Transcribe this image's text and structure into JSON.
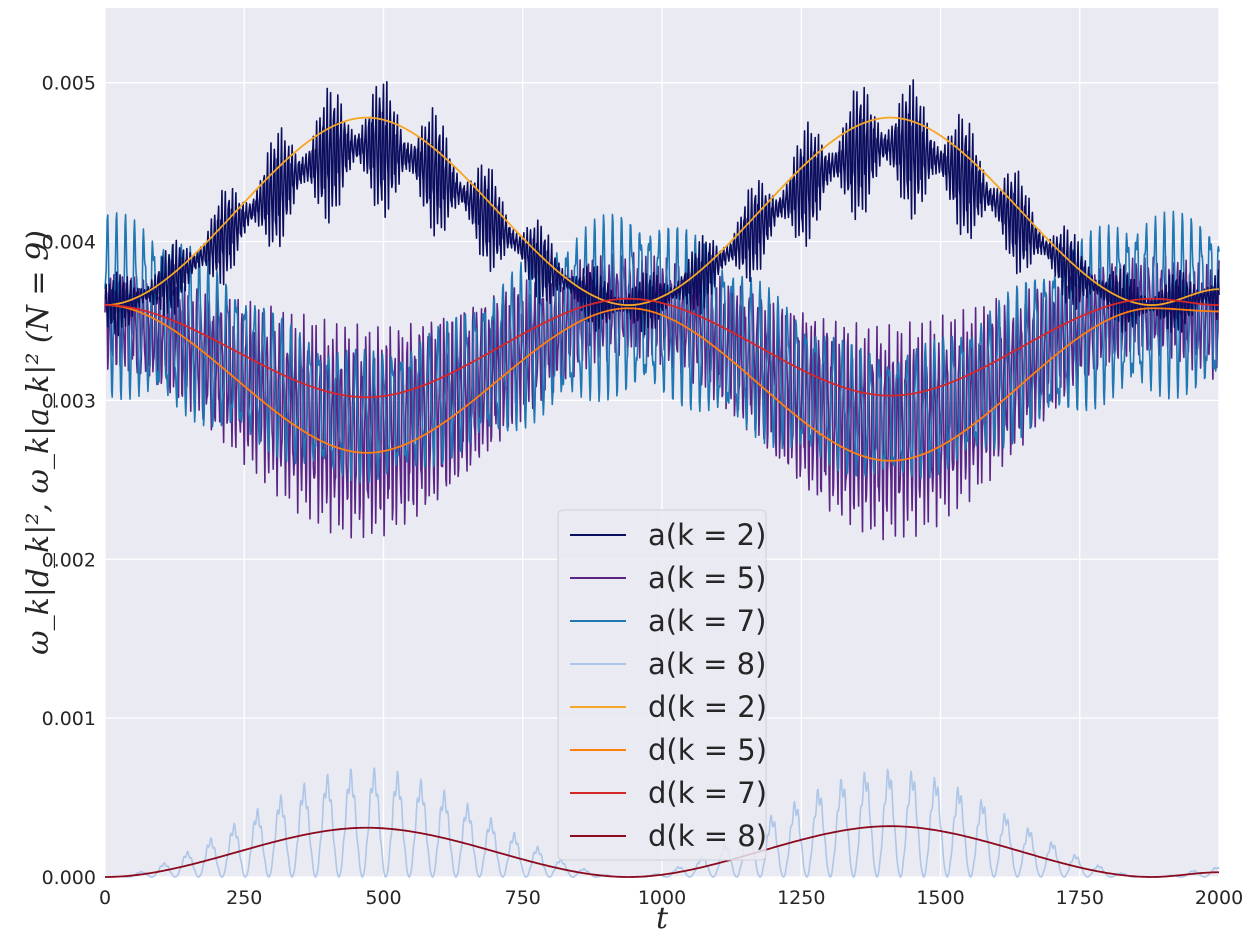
{
  "chart_data": {
    "type": "line",
    "title": "",
    "xlabel": "t",
    "ylabel": "ω_k|d_k|², ω_k|a_k|² (N = 9)",
    "xlim": [
      0,
      2000
    ],
    "ylim": [
      0,
      0.00547
    ],
    "xticks": [
      0,
      250,
      500,
      750,
      1000,
      1250,
      1500,
      1750,
      2000
    ],
    "xtick_labels": [
      "0",
      "250",
      "500",
      "750",
      "1000",
      "1250",
      "1500",
      "1750",
      "2000"
    ],
    "yticks": [
      0,
      0.001,
      0.002,
      0.003,
      0.004,
      0.005
    ],
    "ytick_labels": [
      "0.000",
      "0.001",
      "0.002",
      "0.003",
      "0.004",
      "0.005"
    ],
    "grid": true,
    "legend_position": "bottom-center",
    "series": [
      {
        "name": "a(k = 2)",
        "color": "#0b0d5e",
        "kind": "oscillating",
        "envelope_x": [
          0,
          470,
          940,
          1410,
          1880,
          2000
        ],
        "envelope_y": [
          0.0036,
          0.0046,
          0.0036,
          0.0046,
          0.0036,
          0.00366
        ],
        "oscillation_amplitude": 0.0005
      },
      {
        "name": "a(k = 5)",
        "color": "#5b2487",
        "kind": "oscillating",
        "envelope_x": [
          0,
          470,
          940,
          1410,
          1880,
          2000
        ],
        "envelope_y": [
          0.0035,
          0.0028,
          0.0036,
          0.0028,
          0.0036,
          0.0035
        ],
        "oscillation_amplitude": 0.0006
      },
      {
        "name": "a(k = 7)",
        "color": "#1f77b4",
        "kind": "oscillating",
        "envelope_x": [
          0,
          470,
          940,
          1410,
          1880,
          2000
        ],
        "envelope_y": [
          0.0036,
          0.0029,
          0.0036,
          0.0029,
          0.0036,
          0.0036
        ],
        "oscillation_amplitude": 0.0007
      },
      {
        "name": "a(k = 8)",
        "color": "#aec7e8",
        "kind": "oscillating",
        "envelope_x": [
          0,
          470,
          940,
          1410,
          1880,
          2000
        ],
        "envelope_y": [
          0,
          0.00033,
          0,
          0.00033,
          0,
          3e-05
        ],
        "oscillation_amplitude": 0.00033
      },
      {
        "name": "d(k = 2)",
        "color": "#f5a623",
        "kind": "smooth",
        "x": [
          0,
          470,
          940,
          1410,
          1880,
          2000
        ],
        "y": [
          0.0036,
          0.00478,
          0.0036,
          0.00478,
          0.0036,
          0.0037
        ]
      },
      {
        "name": "d(k = 5)",
        "color": "#ff7f0e",
        "kind": "smooth",
        "x": [
          0,
          470,
          940,
          1410,
          1880,
          2000
        ],
        "y": [
          0.0036,
          0.00267,
          0.00358,
          0.00262,
          0.00358,
          0.00356
        ]
      },
      {
        "name": "d(k = 7)",
        "color": "#d62728",
        "kind": "smooth",
        "x": [
          0,
          470,
          940,
          1410,
          1880,
          2000
        ],
        "y": [
          0.0036,
          0.00302,
          0.00364,
          0.00303,
          0.00364,
          0.0036
        ]
      },
      {
        "name": "d(k = 8)",
        "color": "#8b0a1e",
        "kind": "smooth",
        "x": [
          0,
          470,
          940,
          1410,
          1880,
          2000
        ],
        "y": [
          0,
          0.00031,
          0,
          0.00032,
          0,
          3e-05
        ]
      }
    ]
  }
}
